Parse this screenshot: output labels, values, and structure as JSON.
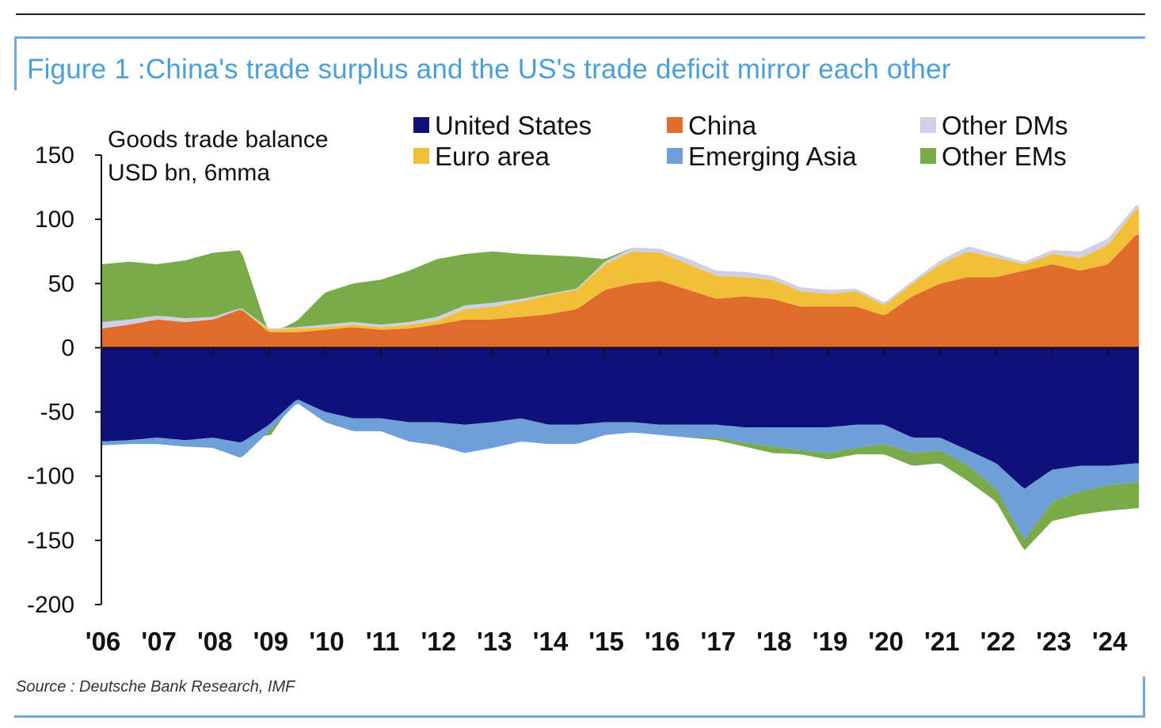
{
  "title": "Figure 1 :China's trade surplus and the US's trade deficit mirror each other",
  "source": "Source : Deutsche Bank Research, IMF",
  "chart_data": {
    "type": "area",
    "stacked": true,
    "ylabel_line1": "Goods trade balance",
    "ylabel_line2": "USD bn, 6mma",
    "ylim": [
      -200,
      150
    ],
    "yticks": [
      150,
      100,
      50,
      0,
      -50,
      -100,
      -150,
      -200
    ],
    "categories": [
      "'06",
      "'07",
      "'08",
      "'09",
      "'10",
      "'11",
      "'12",
      "'13",
      "'14",
      "'15",
      "'16",
      "'17",
      "'18",
      "'19",
      "'20",
      "'21",
      "'22",
      "'23",
      "'24"
    ],
    "x": [
      2006.0,
      2006.5,
      2007.0,
      2007.5,
      2008.0,
      2008.5,
      2009.0,
      2009.5,
      2010.0,
      2010.5,
      2011.0,
      2011.5,
      2012.0,
      2012.5,
      2013.0,
      2013.5,
      2014.0,
      2014.5,
      2015.0,
      2015.5,
      2016.0,
      2016.5,
      2017.0,
      2017.5,
      2018.0,
      2018.5,
      2019.0,
      2019.5,
      2020.0,
      2020.5,
      2021.0,
      2021.5,
      2022.0,
      2022.5,
      2023.0,
      2023.5,
      2024.0,
      2024.5
    ],
    "legend_position": "top",
    "series": [
      {
        "name": "United States",
        "color": "#10107a",
        "values": [
          -73,
          -72,
          -70,
          -72,
          -70,
          -74,
          -60,
          -40,
          -50,
          -55,
          -55,
          -58,
          -58,
          -60,
          -58,
          -55,
          -60,
          -60,
          -58,
          -58,
          -60,
          -60,
          -60,
          -62,
          -62,
          -62,
          -62,
          -60,
          -60,
          -70,
          -70,
          -80,
          -90,
          -110,
          -95,
          -92,
          -92,
          -90
        ]
      },
      {
        "name": "China",
        "color": "#e06b2a",
        "values": [
          15,
          18,
          22,
          20,
          22,
          30,
          12,
          12,
          14,
          16,
          14,
          15,
          18,
          22,
          22,
          24,
          26,
          30,
          45,
          50,
          52,
          45,
          38,
          40,
          38,
          32,
          32,
          32,
          25,
          40,
          50,
          55,
          55,
          60,
          65,
          60,
          65,
          88
        ]
      },
      {
        "name": "Euro area",
        "color": "#f2c037",
        "values": [
          0,
          0,
          0,
          0,
          0,
          0,
          2,
          3,
          2,
          2,
          2,
          3,
          3,
          8,
          10,
          12,
          15,
          15,
          20,
          25,
          22,
          20,
          18,
          15,
          15,
          12,
          10,
          12,
          8,
          10,
          15,
          20,
          15,
          5,
          8,
          10,
          15,
          20
        ]
      },
      {
        "name": "Emerging Asia",
        "color": "#6f9fd8",
        "values": [
          -3,
          -3,
          -5,
          -5,
          -8,
          -12,
          -5,
          -3,
          -8,
          -10,
          -10,
          -15,
          -18,
          -22,
          -20,
          -18,
          -15,
          -15,
          -10,
          -8,
          -8,
          -10,
          -10,
          -12,
          -15,
          -18,
          -20,
          -18,
          -15,
          -12,
          -10,
          -12,
          -20,
          -40,
          -25,
          -20,
          -15,
          -15
        ]
      },
      {
        "name": "Other DMs",
        "color": "#cfcfe6",
        "values": [
          5,
          4,
          3,
          3,
          2,
          1,
          1,
          1,
          2,
          2,
          2,
          2,
          3,
          3,
          3,
          2,
          1,
          1,
          2,
          3,
          3,
          4,
          4,
          4,
          3,
          3,
          3,
          2,
          2,
          2,
          3,
          4,
          3,
          2,
          3,
          5,
          5,
          3
        ]
      },
      {
        "name": "Other EMs",
        "color": "#7aab4a",
        "values": [
          45,
          45,
          40,
          45,
          50,
          45,
          -5,
          5,
          25,
          30,
          35,
          40,
          45,
          40,
          40,
          35,
          30,
          25,
          2,
          0,
          0,
          0,
          -2,
          -3,
          -5,
          -3,
          -5,
          -5,
          -8,
          -10,
          -10,
          -12,
          -10,
          -8,
          -15,
          -18,
          -20,
          -20
        ]
      }
    ]
  }
}
